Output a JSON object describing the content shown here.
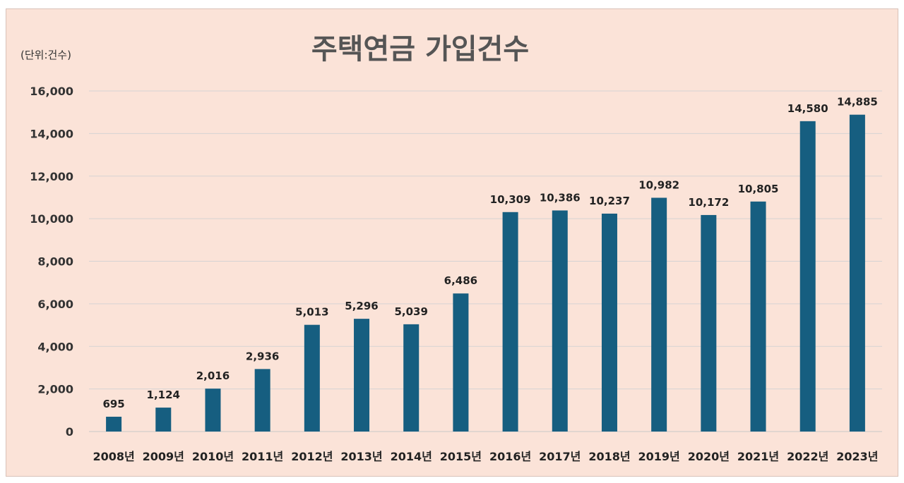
{
  "chart_data": {
    "type": "bar",
    "title": "주택연금 가입건수",
    "unit_label": "(단위:건수)",
    "categories": [
      "2008년",
      "2009년",
      "2010년",
      "2011년",
      "2012년",
      "2013년",
      "2014년",
      "2015년",
      "2016년",
      "2017년",
      "2018년",
      "2019년",
      "2020년",
      "2021년",
      "2022년",
      "2023년"
    ],
    "values": [
      695,
      1124,
      2016,
      2936,
      5013,
      5296,
      5039,
      6486,
      10309,
      10386,
      10237,
      10982,
      10172,
      10805,
      14580,
      14885
    ],
    "data_labels": [
      "695",
      "1,124",
      "2,016",
      "2,936",
      "5,013",
      "5,296",
      "5,039",
      "6,486",
      "10,309",
      "10,386",
      "10,237",
      "10,982",
      "10,172",
      "10,805",
      "14,580",
      "14,885"
    ],
    "yticks": [
      "0",
      "2,000",
      "4,000",
      "6,000",
      "8,000",
      "10,000",
      "12,000",
      "14,000",
      "16,000"
    ],
    "ylim": [
      0,
      16000
    ],
    "ystep": 2000,
    "grid": true,
    "legend": "none",
    "bar_color": "#165e80",
    "background_color": "#fbe3d8"
  }
}
